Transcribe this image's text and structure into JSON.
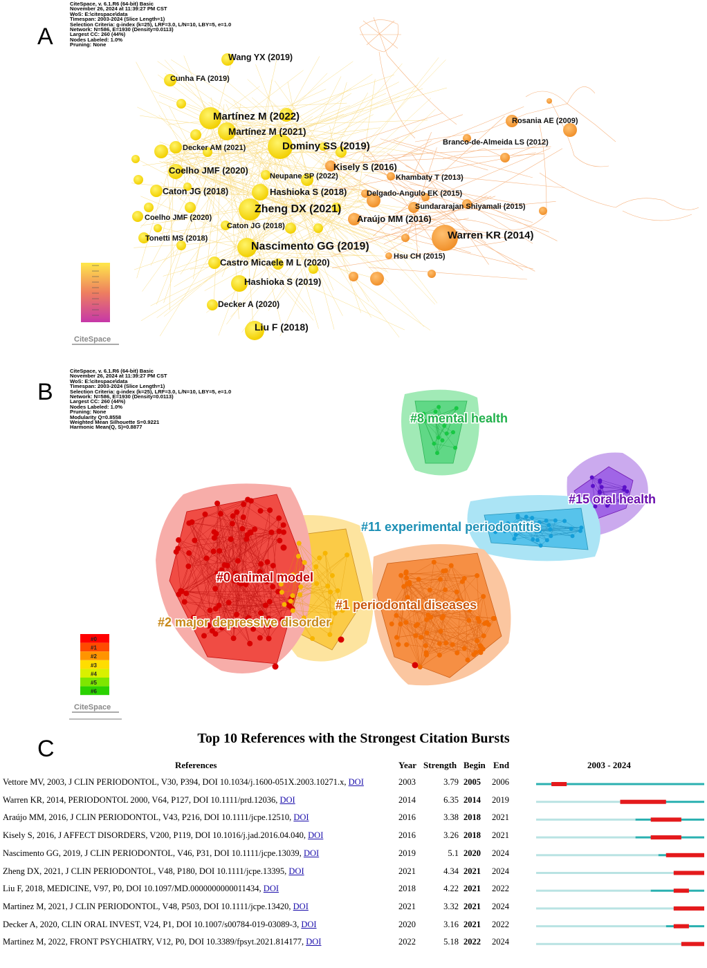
{
  "panel_a": {
    "letter": "A",
    "meta_lines": [
      "CiteSpace, v. 6.1.R6 (64-bit) Basic",
      "November 26, 2024 at 11:39:27 PM CST",
      "WoS: E:\\citespace\\data",
      "Timespan: 2003-2024 (Slice Length=1)",
      "Selection Criteria: g-index (k=25), LRF=3.0, L/N=10, LBY=5, e=1.0",
      "Network: N=586, E=1930 (Density=0.0113)",
      "Largest CC: 260 (44%)",
      "Nodes Labeled: 1.0%",
      "Pruning: None"
    ],
    "labels": [
      "Wang YX (2019)",
      "Cunha FA (2019)",
      "Martínez M (2022)",
      "Martínez M (2021)",
      "Decker AM (2021)",
      "Dominy SS (2019)",
      "Kisely S (2016)",
      "Coelho JMF (2020)",
      "Neupane SP (2022)",
      "Khambaty T (2013)",
      "Caton JG (2018)",
      "Hashioka S (2018)",
      "Delgado-Angulo EK (2015)",
      "Zheng DX (2021)",
      "Sundararajan Shiyamali (2015)",
      "Coelho JMF (2020)",
      "Caton JG (2018)",
      "Araújo MM (2016)",
      "Tonetti MS (2018)",
      "Nascimento GG (2019)",
      "Warren KR (2014)",
      "Hsu CH (2015)",
      "Castro Micaele M L (2020)",
      "Hashioka S (2019)",
      "Decker A (2020)",
      "Liu F (2018)",
      "Rosania AE (2009)",
      "Branco-de-Almeida LS (2012)"
    ],
    "logo": "CiteSpace"
  },
  "panel_b": {
    "letter": "B",
    "meta_lines": [
      "CiteSpace, v. 6.1.R6 (64-bit) Basic",
      "November 26, 2024 at 11:39:27 PM CST",
      "WoS: E:\\citespace\\data",
      "Timespan: 2003-2024 (Slice Length=1)",
      "Selection Criteria: g-index (k=25), LRF=3.0, L/N=10, LBY=5, e=1.0",
      "Network: N=586, E=1930 (Density=0.0113)",
      "Largest CC: 260 (44%)",
      "Nodes Labeled: 1.0%",
      "Pruning: None",
      "Modularity Q=0.8558",
      "Weighted Mean Silhouette S=0.9221",
      "Harmonic Mean(Q, S)=0.8877"
    ],
    "clusters": [
      {
        "label": "#8 mental health",
        "color": "#22b14c"
      },
      {
        "label": "#15 oral health",
        "color": "#6a0dad"
      },
      {
        "label": "#11 experimental periodontitis",
        "color": "#1b8fb5"
      },
      {
        "label": "#0 animal model",
        "color": "#c00000"
      },
      {
        "label": "#1 periodontal diseases",
        "color": "#c9560a"
      },
      {
        "label": "#2 major depressive disorder",
        "color": "#c8891a"
      }
    ],
    "legend": [
      "#0",
      "#1",
      "#2",
      "#3",
      "#4",
      "#5",
      "#6"
    ],
    "logo": "CiteSpace"
  },
  "panel_c": {
    "letter": "C",
    "title": "Top 10 References with the Strongest Citation Bursts",
    "headers": {
      "ref": "References",
      "year": "Year",
      "strength": "Strength",
      "begin": "Begin",
      "end": "End",
      "range": "2003 - 2024"
    },
    "timeline": {
      "start": 2003,
      "end": 2024
    },
    "rows": [
      {
        "ref": "Vettore MV, 2003, J CLIN PERIODONTOL, V30, P394, DOI 10.1034/j.1600-051X.2003.10271.x,",
        "doi": "DOI",
        "year": "2003",
        "strength": "3.79",
        "begin": "2005",
        "end": "2006"
      },
      {
        "ref": "Warren KR, 2014, PERIODONTOL 2000, V64, P127, DOI 10.1111/prd.12036,",
        "doi": "DOI",
        "year": "2014",
        "strength": "6.35",
        "begin": "2014",
        "end": "2019"
      },
      {
        "ref": "Araújo MM, 2016, J CLIN PERIODONTOL, V43, P216, DOI 10.1111/jcpe.12510,",
        "doi": "DOI",
        "year": "2016",
        "strength": "3.38",
        "begin": "2018",
        "end": "2021"
      },
      {
        "ref": "Kisely S, 2016, J AFFECT DISORDERS, V200, P119, DOI 10.1016/j.jad.2016.04.040,",
        "doi": "DOI",
        "year": "2016",
        "strength": "3.26",
        "begin": "2018",
        "end": "2021"
      },
      {
        "ref": "Nascimento GG, 2019, J CLIN PERIODONTOL, V46, P31, DOI 10.1111/jcpe.13039,",
        "doi": "DOI",
        "year": "2019",
        "strength": "5.1",
        "begin": "2020",
        "end": "2024"
      },
      {
        "ref": "Zheng DX, 2021, J CLIN PERIODONTOL, V48, P180, DOI 10.1111/jcpe.13395,",
        "doi": "DOI",
        "year": "2021",
        "strength": "4.34",
        "begin": "2021",
        "end": "2024"
      },
      {
        "ref": "Liu F, 2018, MEDICINE, V97, P0, DOI 10.1097/MD.0000000000011434,",
        "doi": "DOI",
        "year": "2018",
        "strength": "4.22",
        "begin": "2021",
        "end": "2022"
      },
      {
        "ref": "Martinez M, 2021, J CLIN PERIODONTOL, V48, P503, DOI 10.1111/jcpe.13420,",
        "doi": "DOI",
        "year": "2021",
        "strength": "3.32",
        "begin": "2021",
        "end": "2024"
      },
      {
        "ref": "Decker A, 2020, CLIN ORAL INVEST, V24, P1, DOI 10.1007/s00784-019-03089-3,",
        "doi": "DOI",
        "year": "2020",
        "strength": "3.16",
        "begin": "2021",
        "end": "2022"
      },
      {
        "ref": "Martinez M, 2022, FRONT PSYCHIATRY, V12, P0, DOI 10.3389/fpsyt.2021.814177,",
        "doi": "DOI",
        "year": "2022",
        "strength": "5.18",
        "begin": "2022",
        "end": "2024"
      }
    ],
    "colors": {
      "burst": "#e41a1c",
      "active": "#2ab0b0",
      "inactive": "#b9e3e3"
    }
  }
}
